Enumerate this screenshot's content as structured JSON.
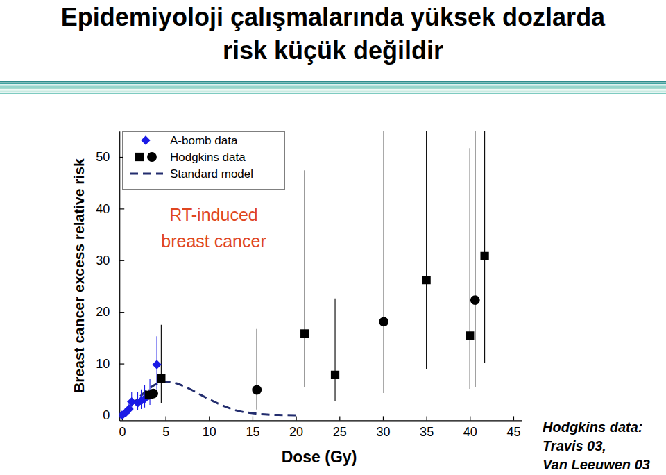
{
  "chart_data": {
    "type": "scatter",
    "title": [
      "Epidemiyoloji çalışmalarında yüksek dozlarda",
      "risk küçük değildir"
    ],
    "x_label": "Dose (Gy)",
    "y_label": "Breast cancer excess relative risk",
    "annotation": [
      "RT-induced",
      "breast cancer"
    ],
    "source": [
      "Hodgkins data:",
      "Travis 03,",
      "Van Leeuwen 03"
    ],
    "xlim": [
      -0.3,
      46
    ],
    "ylim": [
      -1,
      55
    ],
    "xticks": [
      0,
      5,
      10,
      15,
      20,
      25,
      30,
      35,
      40,
      45
    ],
    "yticks": [
      0,
      10,
      20,
      30,
      40,
      50
    ],
    "grid": false,
    "legend": "upper left",
    "series": [
      {
        "name": "A-bomb data",
        "type": "scatter",
        "marker": "diamond",
        "color": "#1a1ae6",
        "x": [
          0,
          0.4,
          0.8,
          1.1,
          1.8,
          2.2,
          2.6,
          3.2,
          4.0
        ],
        "values": [
          0,
          0.5,
          1.2,
          2.6,
          2.4,
          2.8,
          3.2,
          4.0,
          9.8
        ],
        "ci_low": [
          0,
          0,
          0.3,
          1.2,
          1.0,
          1.2,
          1.5,
          2.0,
          5.0
        ],
        "ci_high": [
          0.3,
          1.2,
          2.5,
          4.5,
          4.5,
          5.0,
          5.8,
          7.0,
          15.3
        ]
      },
      {
        "name": "Hodgkins data",
        "type": "scatter",
        "marker": "square",
        "color": "#000000",
        "x": [
          3.1,
          4.5,
          21,
          24.5,
          35,
          40,
          41.7
        ],
        "values": [
          3.9,
          7.1,
          15.8,
          7.8,
          26.2,
          15.4,
          30.8
        ],
        "ci_low": [
          3.0,
          2.4,
          5.4,
          2.7,
          8.9,
          5.1,
          10.1
        ],
        "ci_high": [
          5.0,
          17.5,
          47.4,
          22.6,
          60,
          51.7,
          60
        ]
      },
      {
        "name": "Hodgkins data",
        "type": "scatter",
        "marker": "circle",
        "color": "#000000",
        "x": [
          3.6,
          15.5,
          30.1,
          40.6
        ],
        "values": [
          4.2,
          4.9,
          18.1,
          22.3
        ],
        "ci_low": [
          3.5,
          1.1,
          4.3,
          5.5
        ],
        "ci_high": [
          5.0,
          16.7,
          60,
          60
        ]
      },
      {
        "name": "Standard model",
        "type": "line",
        "line_style": "dashed",
        "color": "#232d6e",
        "x": [
          0,
          1,
          2,
          3,
          4,
          5,
          6,
          7,
          8,
          9,
          10,
          11,
          12,
          13,
          14,
          15,
          16,
          17,
          18,
          19,
          20
        ],
        "values": [
          0,
          1.8,
          3.5,
          5.0,
          6.1,
          6.5,
          6.3,
          5.7,
          4.9,
          4.0,
          3.1,
          2.3,
          1.6,
          1.0,
          0.6,
          0.4,
          0.2,
          0.1,
          0.05,
          0.02,
          0
        ]
      }
    ]
  }
}
